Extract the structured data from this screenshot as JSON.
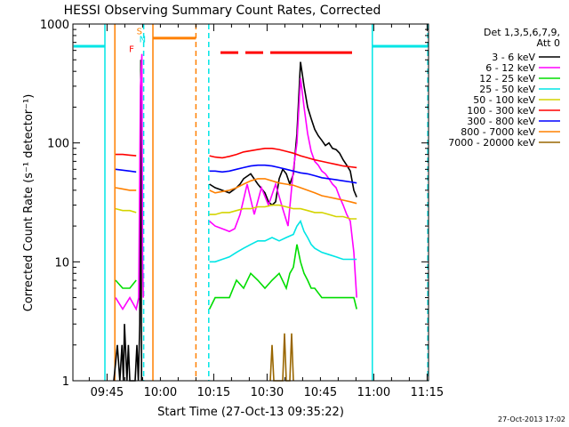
{
  "chart_data": {
    "type": "line",
    "title": "HESSI Observing Summary Count Rates, Corrected",
    "xlabel": "Start Time (27-Oct-13 09:35:22)",
    "ylabel": "Corrected Count Rate (s⁻¹ detector⁻¹)",
    "x_unit": "minutes since 09:35:22",
    "xlim": [
      0,
      100
    ],
    "ylim": [
      1,
      1000
    ],
    "yscale": "log",
    "x_ticks": [
      {
        "x": 9.6,
        "label": "09:45"
      },
      {
        "x": 24.6,
        "label": "10:00"
      },
      {
        "x": 39.6,
        "label": "10:15"
      },
      {
        "x": 54.6,
        "label": "10:30"
      },
      {
        "x": 69.6,
        "label": "10:45"
      },
      {
        "x": 84.6,
        "label": "11:00"
      },
      {
        "x": 99.6,
        "label": "11:15"
      }
    ],
    "y_ticks": [
      {
        "y": 1,
        "label": "1"
      },
      {
        "y": 10,
        "label": "10"
      },
      {
        "y": 100,
        "label": "100"
      },
      {
        "y": 1000,
        "label": "1000"
      }
    ],
    "legend_header": [
      "Det 1,3,5,6,7,9,",
      "Att 0"
    ],
    "legend_position": "right",
    "footer_date": "27-Oct-2013 17:02",
    "flag_letters": [
      {
        "text": "S",
        "x": 18.7,
        "y": 820,
        "color": "#ff8000"
      },
      {
        "text": "N",
        "x": 19.6,
        "y": 700,
        "color": "#00e5e5"
      },
      {
        "text": "F",
        "x": 16.5,
        "y": 580,
        "color": "#ff0000"
      }
    ],
    "series": [
      {
        "name": "3 - 6 keV",
        "color": "#000000",
        "x": [
          11.5,
          12.5,
          13.2,
          13.8,
          14.2,
          14.5,
          15.2,
          15.6,
          16.0,
          17.5,
          18.0,
          18.4,
          18.8,
          19.1,
          19.3
        ],
        "y": [
          1,
          2,
          1,
          2,
          1,
          3,
          1,
          2,
          1,
          1,
          2,
          1,
          3,
          500,
          1
        ]
      },
      {
        "name": "3 - 6 keV",
        "color": "#000000",
        "x": [
          38.4,
          40,
          42,
          44,
          46,
          47,
          48,
          50,
          52,
          54,
          55,
          56,
          57,
          58,
          59,
          60,
          61,
          62,
          63,
          64,
          65,
          66,
          67,
          68,
          69,
          70,
          71,
          72,
          73,
          74,
          75,
          76,
          77,
          78,
          79,
          79.8
        ],
        "y": [
          45,
          42,
          40,
          38,
          42,
          45,
          50,
          55,
          45,
          38,
          32,
          30,
          32,
          50,
          60,
          55,
          45,
          55,
          120,
          480,
          300,
          200,
          160,
          130,
          115,
          105,
          95,
          100,
          90,
          88,
          82,
          72,
          65,
          58,
          40,
          35
        ]
      },
      {
        "name": "6 - 12 keV",
        "color": "#ff00ff",
        "x": [
          12.0,
          14,
          16,
          17.8,
          18.5,
          19,
          19.4,
          19.6,
          19.8
        ],
        "y": [
          5,
          4,
          5,
          4,
          5,
          300,
          560,
          10,
          5
        ]
      },
      {
        "name": "6 - 12 keV",
        "color": "#ff00ff",
        "x": [
          38.4,
          40,
          42,
          44,
          45.5,
          47,
          49,
          51,
          53,
          55,
          57,
          59,
          60.5,
          62,
          63,
          64,
          65,
          66,
          67,
          68,
          69,
          70,
          71,
          72,
          73,
          74,
          75,
          76,
          77,
          78,
          79,
          79.8
        ],
        "y": [
          22,
          20,
          19,
          18,
          19,
          25,
          45,
          25,
          42,
          30,
          45,
          28,
          20,
          60,
          100,
          350,
          200,
          120,
          85,
          70,
          65,
          58,
          55,
          50,
          45,
          42,
          35,
          30,
          25,
          22,
          12,
          5
        ]
      },
      {
        "name": "12 - 25 keV",
        "color": "#00dd00",
        "x": [
          12.0,
          14,
          16,
          17.8
        ],
        "y": [
          7,
          6,
          6,
          7
        ]
      },
      {
        "name": "12 - 25 keV",
        "color": "#00dd00",
        "x": [
          38.4,
          40,
          42,
          44,
          46,
          48,
          50,
          52,
          54,
          56,
          58,
          60,
          61,
          62,
          63,
          64,
          65,
          66,
          67,
          68,
          70,
          72,
          74,
          76,
          78,
          79,
          79.8
        ],
        "y": [
          4,
          5,
          5,
          5,
          7,
          6,
          8,
          7,
          6,
          7,
          8,
          6,
          8,
          9,
          14,
          10,
          8,
          7,
          6,
          6,
          5,
          5,
          5,
          5,
          5,
          5,
          4
        ]
      },
      {
        "name": "25 - 50 keV",
        "color": "#00e5e5",
        "x": [
          38.4,
          40,
          42,
          44,
          46,
          48,
          50,
          52,
          54,
          56,
          58,
          60,
          62,
          63,
          64,
          65,
          66,
          67,
          68,
          70,
          72,
          74,
          76,
          78,
          79.8
        ],
        "y": [
          10,
          10,
          10.5,
          11,
          12,
          13,
          14,
          15,
          15,
          16,
          15,
          16,
          17,
          20,
          22,
          18,
          16,
          14,
          13,
          12,
          11.5,
          11,
          10.5,
          10.5,
          10.5
        ]
      },
      {
        "name": "50 - 100 keV",
        "color": "#d4d400",
        "x": [
          12.0,
          14,
          16,
          17.8
        ],
        "y": [
          28,
          27,
          27,
          26
        ]
      },
      {
        "name": "50 - 100 keV",
        "color": "#d4d400",
        "x": [
          38.4,
          40,
          42,
          44,
          46,
          48,
          50,
          52,
          54,
          56,
          58,
          60,
          62,
          64,
          66,
          68,
          70,
          72,
          74,
          76,
          78,
          79.8
        ],
        "y": [
          25,
          25,
          26,
          26,
          27,
          28,
          28,
          29,
          29,
          30,
          30,
          29,
          28,
          28,
          27,
          26,
          26,
          25,
          24,
          24,
          23,
          23
        ]
      },
      {
        "name": "100 - 300 keV",
        "color": "#ff0000",
        "x": [
          12.0,
          14,
          16,
          17.8
        ],
        "y": [
          80,
          80,
          79,
          78
        ]
      },
      {
        "name": "100 - 300 keV",
        "color": "#ff0000",
        "x": [
          38.4,
          40,
          42,
          44,
          46,
          48,
          50,
          52,
          54,
          56,
          58,
          60,
          62,
          64,
          66,
          68,
          70,
          72,
          74,
          76,
          78,
          79.8
        ],
        "y": [
          78,
          76,
          75,
          77,
          80,
          84,
          86,
          88,
          90,
          90,
          88,
          85,
          82,
          78,
          75,
          72,
          70,
          68,
          66,
          64,
          63,
          62
        ]
      },
      {
        "name": "300 - 800 keV",
        "color": "#0000ff",
        "x": [
          12.0,
          14,
          16,
          17.8
        ],
        "y": [
          60,
          59,
          58,
          57
        ]
      },
      {
        "name": "300 - 800 keV",
        "color": "#0000ff",
        "x": [
          38.4,
          40,
          42,
          44,
          46,
          48,
          50,
          52,
          54,
          56,
          58,
          60,
          62,
          64,
          66,
          68,
          70,
          72,
          74,
          76,
          78,
          79.8
        ],
        "y": [
          58,
          58,
          57,
          58,
          60,
          62,
          64,
          65,
          65,
          64,
          62,
          60,
          58,
          56,
          55,
          53,
          51,
          50,
          49,
          48,
          47,
          46
        ]
      },
      {
        "name": "800 - 7000 keV",
        "color": "#ff8000",
        "x": [
          12.0,
          14,
          16,
          17.8
        ],
        "y": [
          42,
          41,
          40,
          40
        ]
      },
      {
        "name": "800 - 7000 keV",
        "color": "#ff8000",
        "x": [
          38.4,
          40,
          42,
          44,
          46,
          48,
          50,
          52,
          54,
          56,
          58,
          60,
          62,
          64,
          66,
          68,
          70,
          72,
          74,
          76,
          78,
          79.8
        ],
        "y": [
          40,
          38,
          39,
          40,
          42,
          45,
          48,
          50,
          50,
          48,
          46,
          45,
          44,
          42,
          40,
          38,
          36,
          35,
          34,
          33,
          32,
          31
        ]
      },
      {
        "name": "7000 - 20000 keV",
        "color": "#996600",
        "x": [
          55.5,
          56,
          56.5,
          59,
          59.5,
          60,
          61,
          61.5,
          62
        ],
        "y": [
          1,
          2,
          1,
          1,
          2.5,
          1,
          1,
          2.5,
          1
        ]
      }
    ],
    "legend": [
      {
        "label": "3 - 6 keV",
        "color": "#000000"
      },
      {
        "label": "6 - 12 keV",
        "color": "#ff00ff"
      },
      {
        "label": "12 - 25 keV",
        "color": "#00dd00"
      },
      {
        "label": "25 - 50 keV",
        "color": "#00e5e5"
      },
      {
        "label": "50 - 100 keV",
        "color": "#d4d400"
      },
      {
        "label": "100 - 300 keV",
        "color": "#ff0000"
      },
      {
        "label": "300 - 800 keV",
        "color": "#0000ff"
      },
      {
        "label": "800 - 7000 keV",
        "color": "#ff8000"
      },
      {
        "label": "7000 - 20000 keV",
        "color": "#996600"
      }
    ],
    "flag_bars": [
      {
        "name": "night",
        "color": "#00e5e5",
        "y": 650,
        "x0": 0.2,
        "x1": 9.0
      },
      {
        "name": "night",
        "color": "#00e5e5",
        "y": 650,
        "x0": 84.2,
        "x1": 99.8
      },
      {
        "name": "saa",
        "color": "#ff8000",
        "y": 760,
        "x0": 22.5,
        "x1": 34.6
      },
      {
        "name": "flare",
        "color": "#ff0000",
        "y": 575,
        "x0": 41.5,
        "x1": 46.5
      },
      {
        "name": "flare",
        "color": "#ff0000",
        "y": 575,
        "x0": 48.5,
        "x1": 53.5
      },
      {
        "name": "flare",
        "color": "#ff0000",
        "y": 575,
        "x0": 55.5,
        "x1": 78.5
      }
    ],
    "vlines": [
      {
        "x": 9.0,
        "color": "#00e5e5",
        "dash": false
      },
      {
        "x": 84.2,
        "color": "#00e5e5",
        "dash": false
      },
      {
        "x": 22.5,
        "color": "#ff8000",
        "dash": false
      },
      {
        "x": 11.8,
        "color": "#ff8000",
        "dash": false
      },
      {
        "x": 34.6,
        "color": "#ff8000",
        "dash": true
      },
      {
        "x": 19.9,
        "color": "#00e5e5",
        "dash": true
      },
      {
        "x": 38.2,
        "color": "#00e5e5",
        "dash": true
      },
      {
        "x": 99.8,
        "color": "#00e5e5",
        "dash": true
      }
    ]
  }
}
